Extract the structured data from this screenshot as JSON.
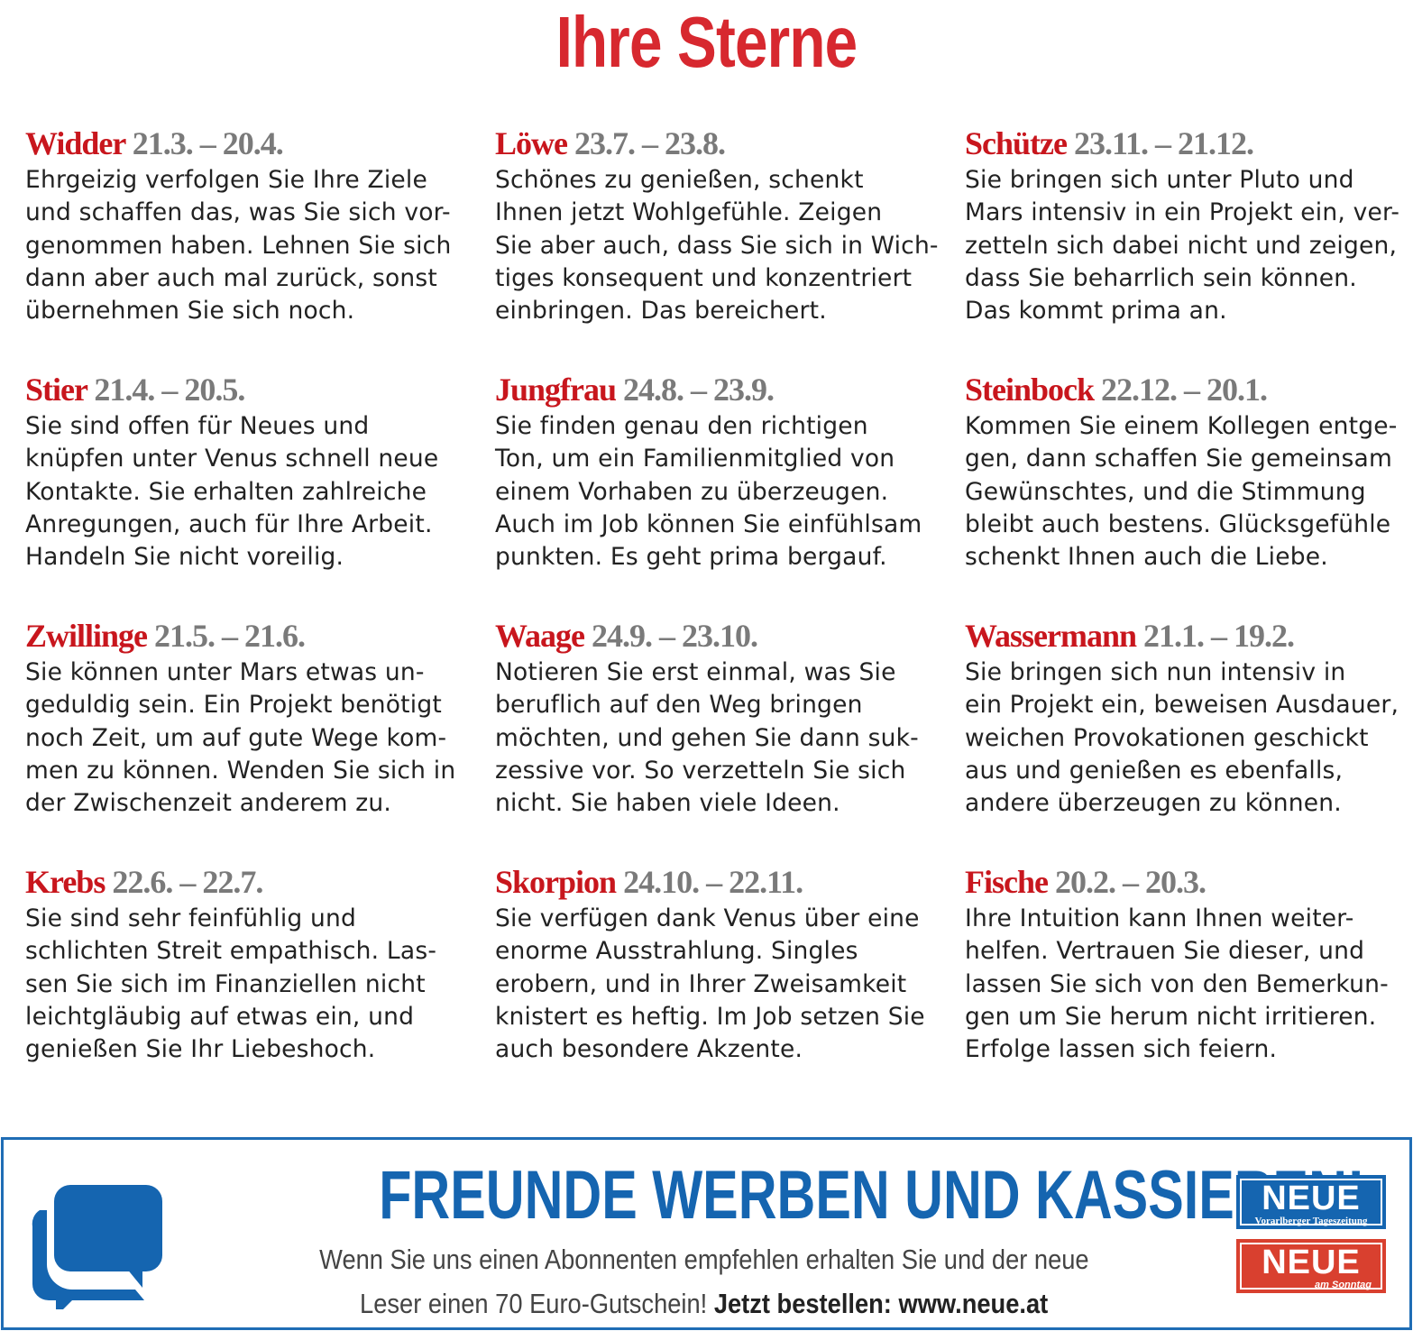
{
  "title": "Ihre Sterne",
  "signs": [
    {
      "name": "Widder",
      "dates": "21.3. – 20.4.",
      "text": "Ehrgeizig verfolgen Sie Ihre Ziele\nund schaffen das, was Sie sich vor-\ngenommen haben. Lehnen Sie sich\ndann aber auch mal zurück, sonst\nübernehmen Sie sich noch."
    },
    {
      "name": "Löwe",
      "dates": "23.7. – 23.8.",
      "text": "Schönes zu genießen, schenkt\nIhnen jetzt Wohlgefühle. Zeigen\nSie aber auch, dass Sie sich in Wich-\ntiges konsequent und konzentriert\neinbringen. Das bereichert."
    },
    {
      "name": "Schütze",
      "dates": "23.11. – 21.12.",
      "text": "Sie bringen sich unter Pluto und\nMars intensiv in ein Projekt ein, ver-\nzetteln sich dabei nicht und zeigen,\ndass Sie beharrlich sein können.\nDas kommt prima an."
    },
    {
      "name": "Stier",
      "dates": "21.4. – 20.5.",
      "text": "Sie sind offen für Neues und\nknüpfen unter Venus schnell neue\nKontakte. Sie erhalten zahlreiche\nAnregungen, auch für Ihre Arbeit.\nHandeln Sie nicht voreilig."
    },
    {
      "name": "Jungfrau",
      "dates": "24.8. – 23.9.",
      "text": "Sie finden genau den richtigen\nTon, um ein Familienmitglied von\neinem Vorhaben zu überzeugen.\nAuch im Job können Sie einfühlsam\npunkten. Es geht prima bergauf."
    },
    {
      "name": "Steinbock",
      "dates": "22.12. – 20.1.",
      "text": "Kommen Sie einem Kollegen entge-\ngen, dann schaffen Sie gemeinsam\nGewünschtes, und die Stimmung\nbleibt auch bestens. Glücksgefühle\nschenkt Ihnen auch die Liebe."
    },
    {
      "name": "Zwillinge",
      "dates": "21.5. – 21.6.",
      "text": "Sie können unter Mars etwas un-\ngeduldig sein. Ein Projekt benötigt\nnoch Zeit, um auf gute Wege kom-\nmen zu können. Wenden Sie sich in\nder Zwischenzeit anderem zu."
    },
    {
      "name": "Waage",
      "dates": "24.9. – 23.10.",
      "text": "Notieren Sie erst einmal, was Sie\nberuflich auf den Weg bringen\nmöchten, und gehen Sie dann suk-\nzessive vor. So verzetteln Sie sich\nnicht. Sie haben viele Ideen."
    },
    {
      "name": "Wassermann",
      "dates": "21.1. – 19.2.",
      "text": "Sie bringen sich nun intensiv in\nein Projekt ein, beweisen Ausdauer,\nweichen Provokationen geschickt\naus und genießen es ebenfalls,\nandere überzeugen zu können."
    },
    {
      "name": "Krebs",
      "dates": "22.6. – 22.7.",
      "text": "Sie sind sehr feinfühlig und\nschlichten Streit empathisch. Las-\nsen Sie sich im Finanziellen nicht\nleichtgläubig auf etwas ein, und\ngenießen Sie Ihr Liebeshoch."
    },
    {
      "name": "Skorpion",
      "dates": "24.10. – 22.11.",
      "text": "Sie verfügen dank Venus über eine\nenorme Ausstrahlung. Singles\nerobern, und in Ihrer Zweisamkeit\nknistert es heftig. Im Job setzen Sie\nauch besondere Akzente."
    },
    {
      "name": "Fische",
      "dates": "20.2. – 20.3.",
      "text": "Ihre Intuition kann Ihnen weiter-\nhelfen. Vertrauen Sie dieser, und\nlassen Sie sich von den Bemerkun-\ngen um Sie herum nicht irritieren.\nErfolge lassen sich feiern."
    }
  ],
  "ad": {
    "icon": "chat-bubbles-icon",
    "headline": "FREUNDE WERBEN UND KASSIEREN!",
    "line1": "Wenn Sie uns einen Abonnenten empfehlen erhalten Sie und der neue",
    "line2": "Leser einen 70 Euro-Gutschein!",
    "cta": "Jetzt bestellen: www.neue.at",
    "logo1": {
      "name": "NEUE",
      "subtitle": "Vorarlberger Tageszeitung",
      "color": "#1565b0"
    },
    "logo2": {
      "name": "NEUE",
      "subtitle": "am Sonntag",
      "color": "#d9402f"
    },
    "accent_color": "#1565b0"
  },
  "colors": {
    "title": "#d7282f",
    "sign_name": "#c8161d",
    "dates": "#7a7a7a"
  }
}
